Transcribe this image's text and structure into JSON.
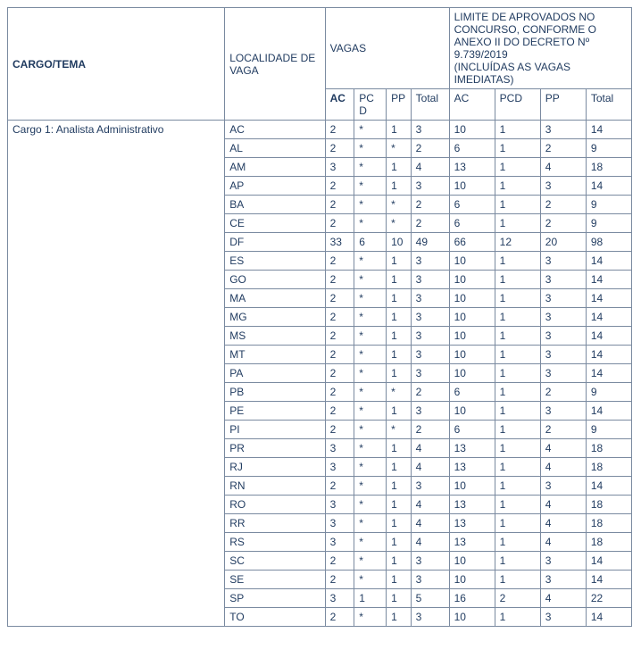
{
  "colors": {
    "text": "#1f3a5f",
    "border": "#7a8aa0",
    "background": "#ffffff"
  },
  "headers": {
    "cargo": "CARGO/TEMA",
    "localidade": "LOCALIDADE DE VAGA",
    "vagas": "VAGAS",
    "limite": "LIMITE DE APROVADOS NO CONCURSO, CONFORME O ANEXO II DO DECRETO Nº 9.739/2019\n(INCLUÍDAS AS VAGAS IMEDIATAS)",
    "sub": {
      "ac": "AC",
      "pcd": "PCD",
      "pp": "PP",
      "total": "Total",
      "ac2": "AC",
      "pcd2": "PCD",
      "pp2": "PP",
      "total2": "Total"
    }
  },
  "cargo_label": "Cargo 1: Analista Administrativo",
  "rows": [
    {
      "loc": "AC",
      "ac": "2",
      "pcd": "*",
      "pp": "1",
      "total": "3",
      "lac": "10",
      "lpcd": "1",
      "lpp": "3",
      "ltotal": "14"
    },
    {
      "loc": "AL",
      "ac": "2",
      "pcd": "*",
      "pp": "*",
      "total": "2",
      "lac": "6",
      "lpcd": "1",
      "lpp": "2",
      "ltotal": "9"
    },
    {
      "loc": "AM",
      "ac": "3",
      "pcd": "*",
      "pp": "1",
      "total": "4",
      "lac": "13",
      "lpcd": "1",
      "lpp": "4",
      "ltotal": "18"
    },
    {
      "loc": "AP",
      "ac": "2",
      "pcd": "*",
      "pp": "1",
      "total": "3",
      "lac": "10",
      "lpcd": "1",
      "lpp": "3",
      "ltotal": "14"
    },
    {
      "loc": "BA",
      "ac": "2",
      "pcd": "*",
      "pp": "*",
      "total": "2",
      "lac": "6",
      "lpcd": "1",
      "lpp": "2",
      "ltotal": "9"
    },
    {
      "loc": "CE",
      "ac": "2",
      "pcd": "*",
      "pp": "*",
      "total": "2",
      "lac": "6",
      "lpcd": "1",
      "lpp": "2",
      "ltotal": "9"
    },
    {
      "loc": "DF",
      "ac": "33",
      "pcd": "6",
      "pp": "10",
      "total": "49",
      "lac": "66",
      "lpcd": "12",
      "lpp": "20",
      "ltotal": "98"
    },
    {
      "loc": "ES",
      "ac": "2",
      "pcd": "*",
      "pp": "1",
      "total": "3",
      "lac": "10",
      "lpcd": "1",
      "lpp": "3",
      "ltotal": "14"
    },
    {
      "loc": "GO",
      "ac": "2",
      "pcd": "*",
      "pp": "1",
      "total": "3",
      "lac": "10",
      "lpcd": "1",
      "lpp": "3",
      "ltotal": "14"
    },
    {
      "loc": "MA",
      "ac": "2",
      "pcd": "*",
      "pp": "1",
      "total": "3",
      "lac": "10",
      "lpcd": "1",
      "lpp": "3",
      "ltotal": "14"
    },
    {
      "loc": "MG",
      "ac": "2",
      "pcd": "*",
      "pp": "1",
      "total": "3",
      "lac": "10",
      "lpcd": "1",
      "lpp": "3",
      "ltotal": "14"
    },
    {
      "loc": "MS",
      "ac": "2",
      "pcd": "*",
      "pp": "1",
      "total": "3",
      "lac": "10",
      "lpcd": "1",
      "lpp": "3",
      "ltotal": "14"
    },
    {
      "loc": "MT",
      "ac": "2",
      "pcd": "*",
      "pp": "1",
      "total": "3",
      "lac": "10",
      "lpcd": "1",
      "lpp": "3",
      "ltotal": "14"
    },
    {
      "loc": "PA",
      "ac": "2",
      "pcd": "*",
      "pp": "1",
      "total": "3",
      "lac": "10",
      "lpcd": "1",
      "lpp": "3",
      "ltotal": "14"
    },
    {
      "loc": "PB",
      "ac": "2",
      "pcd": "*",
      "pp": "*",
      "total": "2",
      "lac": "6",
      "lpcd": "1",
      "lpp": "2",
      "ltotal": "9"
    },
    {
      "loc": "PE",
      "ac": "2",
      "pcd": "*",
      "pp": "1",
      "total": "3",
      "lac": "10",
      "lpcd": "1",
      "lpp": "3",
      "ltotal": "14"
    },
    {
      "loc": "PI",
      "ac": "2",
      "pcd": "*",
      "pp": "*",
      "total": "2",
      "lac": "6",
      "lpcd": "1",
      "lpp": "2",
      "ltotal": "9"
    },
    {
      "loc": "PR",
      "ac": "3",
      "pcd": "*",
      "pp": "1",
      "total": "4",
      "lac": "13",
      "lpcd": "1",
      "lpp": "4",
      "ltotal": "18"
    },
    {
      "loc": "RJ",
      "ac": "3",
      "pcd": "*",
      "pp": "1",
      "total": "4",
      "lac": "13",
      "lpcd": "1",
      "lpp": "4",
      "ltotal": "18"
    },
    {
      "loc": "RN",
      "ac": "2",
      "pcd": "*",
      "pp": "1",
      "total": "3",
      "lac": "10",
      "lpcd": "1",
      "lpp": "3",
      "ltotal": "14"
    },
    {
      "loc": "RO",
      "ac": "3",
      "pcd": "*",
      "pp": "1",
      "total": "4",
      "lac": "13",
      "lpcd": "1",
      "lpp": "4",
      "ltotal": "18"
    },
    {
      "loc": "RR",
      "ac": "3",
      "pcd": "*",
      "pp": "1",
      "total": "4",
      "lac": "13",
      "lpcd": "1",
      "lpp": "4",
      "ltotal": "18"
    },
    {
      "loc": "RS",
      "ac": "3",
      "pcd": "*",
      "pp": "1",
      "total": "4",
      "lac": "13",
      "lpcd": "1",
      "lpp": "4",
      "ltotal": "18"
    },
    {
      "loc": "SC",
      "ac": "2",
      "pcd": "*",
      "pp": "1",
      "total": "3",
      "lac": "10",
      "lpcd": "1",
      "lpp": "3",
      "ltotal": "14"
    },
    {
      "loc": "SE",
      "ac": "2",
      "pcd": "*",
      "pp": "1",
      "total": "3",
      "lac": "10",
      "lpcd": "1",
      "lpp": "3",
      "ltotal": "14"
    },
    {
      "loc": "SP",
      "ac": "3",
      "pcd": "1",
      "pp": "1",
      "total": "5",
      "lac": "16",
      "lpcd": "2",
      "lpp": "4",
      "ltotal": "22"
    },
    {
      "loc": "TO",
      "ac": "2",
      "pcd": "*",
      "pp": "1",
      "total": "3",
      "lac": "10",
      "lpcd": "1",
      "lpp": "3",
      "ltotal": "14"
    }
  ]
}
